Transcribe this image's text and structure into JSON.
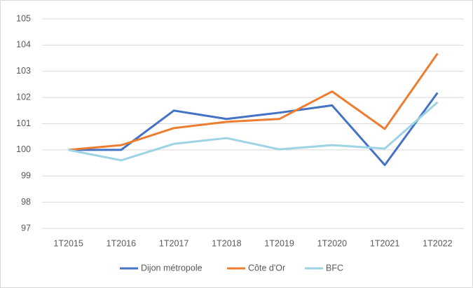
{
  "chart_data": {
    "type": "line",
    "categories": [
      "1T2015",
      "1T2016",
      "1T2017",
      "1T2018",
      "1T2019",
      "1T2020",
      "1T2021",
      "1T2022"
    ],
    "series": [
      {
        "name": "Dijon métropole",
        "color": "#4472c4",
        "values": [
          100,
          100,
          101.5,
          101.18,
          101.42,
          101.7,
          99.42,
          102.18
        ]
      },
      {
        "name": "Côte d'Or",
        "color": "#ed7d31",
        "values": [
          100,
          100.18,
          100.83,
          101.07,
          101.18,
          102.23,
          100.8,
          103.68
        ]
      },
      {
        "name": "BFC",
        "color": "#9dd3e4",
        "values": [
          100,
          99.6,
          100.23,
          100.45,
          100.02,
          100.18,
          100.05,
          101.82
        ]
      }
    ],
    "ylim": [
      97,
      105
    ],
    "yticks": [
      97,
      98,
      99,
      100,
      101,
      102,
      103,
      104,
      105
    ],
    "grid": true,
    "legend": "bottom"
  }
}
